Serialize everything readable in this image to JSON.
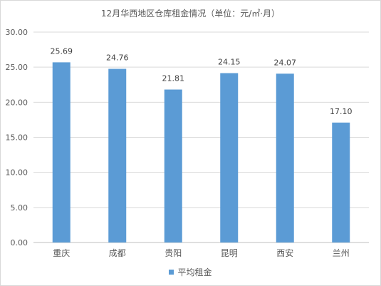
{
  "colors": {
    "bar": "#5b9bd5",
    "grid": "#d9d9d9",
    "axis": "#bfbfbf",
    "text": "#595959"
  },
  "chart_data": {
    "type": "bar",
    "title": "12月华西地区仓库租金情况（单位：元/㎡·月）",
    "xlabel": "",
    "ylabel": "",
    "categories": [
      "重庆",
      "成都",
      "贵阳",
      "昆明",
      "西安",
      "兰州"
    ],
    "series": [
      {
        "name": "平均租金",
        "values": [
          25.69,
          24.76,
          21.81,
          24.15,
          24.07,
          17.1
        ],
        "value_labels": [
          "25.69",
          "24.76",
          "21.81",
          "24.15",
          "24.07",
          "17.10"
        ]
      }
    ],
    "ylim": [
      0,
      30
    ],
    "yticks": [
      "0.00",
      "5.00",
      "10.00",
      "15.00",
      "20.00",
      "25.00",
      "30.00"
    ],
    "grid": true,
    "legend_position": "bottom"
  }
}
